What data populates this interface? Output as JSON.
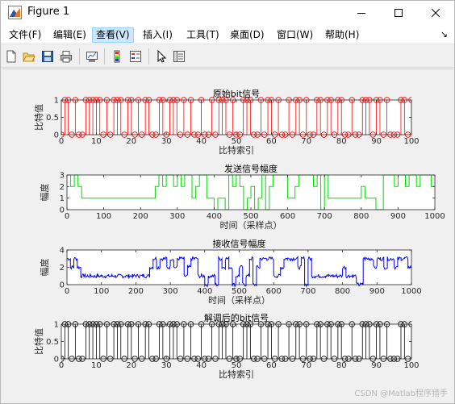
{
  "window": {
    "title": "Figure 1"
  },
  "menu": [
    "文件(F)",
    "编辑(E)",
    "查看(V)",
    "插入(I)",
    "工具(T)",
    "桌面(D)",
    "窗口(W)",
    "帮助(H)"
  ],
  "menu_active": "查看(V)",
  "toolbar_icons": [
    "new-figure-icon",
    "open-file-icon",
    "save-icon",
    "print-icon",
    "link-plot-icon",
    "insert-colorbar-icon",
    "insert-legend-icon",
    "select-pointer-icon",
    "property-editor-icon"
  ],
  "colors": {
    "red": "#ff0000",
    "green": "#00dd00",
    "blue": "#0000ff",
    "black": "#000000"
  },
  "watermark": "CSDN @Matlab程序猎手",
  "chart_data": [
    {
      "type": "scatter",
      "title": "原始bit信号",
      "xlabel": "比特索引",
      "ylabel": "比特值",
      "xlim": [
        0,
        100
      ],
      "ylim": [
        0,
        1
      ],
      "xticks": [
        0,
        10,
        20,
        30,
        40,
        50,
        60,
        70,
        80,
        90,
        100
      ],
      "yticks": [
        0,
        0.5,
        1
      ],
      "style": "stem",
      "color": "#ff0000",
      "values": [
        0,
        1,
        1,
        0,
        1,
        0,
        0,
        1,
        1,
        1,
        1,
        1,
        0,
        1,
        0,
        1,
        1,
        1,
        0,
        1,
        1,
        0,
        1,
        0,
        1,
        1,
        0,
        0,
        1,
        1,
        0,
        1,
        1,
        1,
        0,
        1,
        0,
        1,
        0,
        0,
        1,
        0,
        0,
        1,
        0,
        1,
        1,
        1,
        0,
        1,
        0,
        0,
        1,
        1,
        1,
        0,
        0,
        1,
        0,
        1,
        1,
        0,
        1,
        0,
        0,
        1,
        0,
        1,
        1,
        0,
        1,
        0,
        0,
        1,
        1,
        0,
        1,
        1,
        0,
        1,
        1,
        0,
        0,
        1,
        0,
        0,
        1,
        1,
        1,
        0,
        1,
        1,
        0,
        1,
        0,
        0,
        0,
        1,
        1,
        0,
        1
      ]
    },
    {
      "type": "line",
      "title": "发送信号幅度",
      "xlabel": "时间（采样点）",
      "ylabel": "幅度",
      "xlim": [
        0,
        1000
      ],
      "ylim": [
        0,
        3
      ],
      "xticks": [
        0,
        100,
        200,
        300,
        400,
        500,
        600,
        700,
        800,
        900,
        1000
      ],
      "yticks": [
        0,
        1,
        2,
        3
      ],
      "color": "#00dd00",
      "levels": [
        3,
        2,
        3,
        2,
        1,
        1,
        1,
        1,
        1,
        1,
        1,
        1,
        1,
        1,
        1,
        1,
        1,
        1,
        1,
        1,
        1,
        1,
        1,
        1,
        2,
        3,
        2,
        3,
        3,
        2,
        3,
        2,
        3,
        3,
        1,
        2,
        3,
        3,
        1,
        1,
        0,
        1,
        1,
        0,
        3,
        2,
        3,
        2,
        0,
        1,
        2,
        0,
        1,
        3,
        0,
        2,
        3,
        3,
        3,
        3,
        1,
        1,
        2,
        3,
        3,
        3,
        3,
        2,
        3,
        0,
        3,
        1,
        1,
        1,
        1,
        1,
        1,
        1,
        1,
        1,
        2,
        1,
        1,
        1,
        0,
        0,
        3,
        3,
        3,
        2,
        3,
        3,
        2,
        3,
        3,
        2,
        3,
        3,
        3,
        2
      ]
    },
    {
      "type": "line",
      "title": "接收信号幅度",
      "xlabel": "时间（采样点）",
      "ylabel": "幅度",
      "xlim": [
        0,
        1000
      ],
      "ylim": [
        0,
        4
      ],
      "xticks": [
        0,
        100,
        200,
        300,
        400,
        500,
        600,
        700,
        800,
        900,
        1000
      ],
      "yticks": [
        0,
        2,
        4
      ],
      "color": "#0000ff",
      "levels": [
        3,
        2,
        3,
        2,
        1,
        1,
        1,
        1,
        1,
        1,
        1,
        1,
        1,
        1,
        1,
        1,
        1,
        1,
        1,
        1,
        1,
        1,
        1,
        1,
        2,
        3,
        2,
        3,
        3,
        2,
        3,
        2,
        3,
        3,
        1,
        2,
        3,
        3,
        1,
        1,
        0,
        1,
        1,
        0,
        3,
        2,
        3,
        2,
        0,
        1,
        2,
        0,
        1,
        3,
        0,
        2,
        3,
        3,
        3,
        3,
        1,
        1,
        2,
        3,
        3,
        3,
        3,
        2,
        3,
        0,
        3,
        1,
        1,
        1,
        1,
        1,
        1,
        1,
        1,
        1,
        2,
        1,
        1,
        1,
        0,
        0,
        3,
        3,
        3,
        2,
        3,
        3,
        2,
        3,
        3,
        2,
        3,
        3,
        3,
        2
      ]
    },
    {
      "type": "scatter",
      "title": "解调后的bit信号",
      "xlabel": "比特索引",
      "ylabel": "比特值",
      "xlim": [
        0,
        100
      ],
      "ylim": [
        0,
        1
      ],
      "xticks": [
        0,
        10,
        20,
        30,
        40,
        50,
        60,
        70,
        80,
        90,
        100
      ],
      "yticks": [
        0,
        0.5,
        1
      ],
      "style": "stem",
      "color": "#000000",
      "values": [
        0,
        1,
        1,
        0,
        1,
        0,
        0,
        1,
        1,
        1,
        1,
        1,
        0,
        1,
        0,
        1,
        1,
        1,
        0,
        1,
        1,
        0,
        1,
        0,
        1,
        1,
        0,
        0,
        1,
        1,
        0,
        1,
        1,
        1,
        0,
        1,
        0,
        1,
        0,
        0,
        1,
        0,
        0,
        1,
        0,
        1,
        1,
        1,
        0,
        1,
        0,
        0,
        1,
        1,
        1,
        0,
        0,
        1,
        0,
        1,
        1,
        0,
        1,
        0,
        0,
        1,
        0,
        1,
        1,
        0,
        1,
        0,
        0,
        1,
        1,
        0,
        1,
        1,
        0,
        1,
        1,
        0,
        0,
        1,
        0,
        0,
        1,
        1,
        1,
        0,
        1,
        1,
        0,
        1,
        0,
        0,
        0,
        1,
        1,
        0,
        1
      ]
    }
  ]
}
